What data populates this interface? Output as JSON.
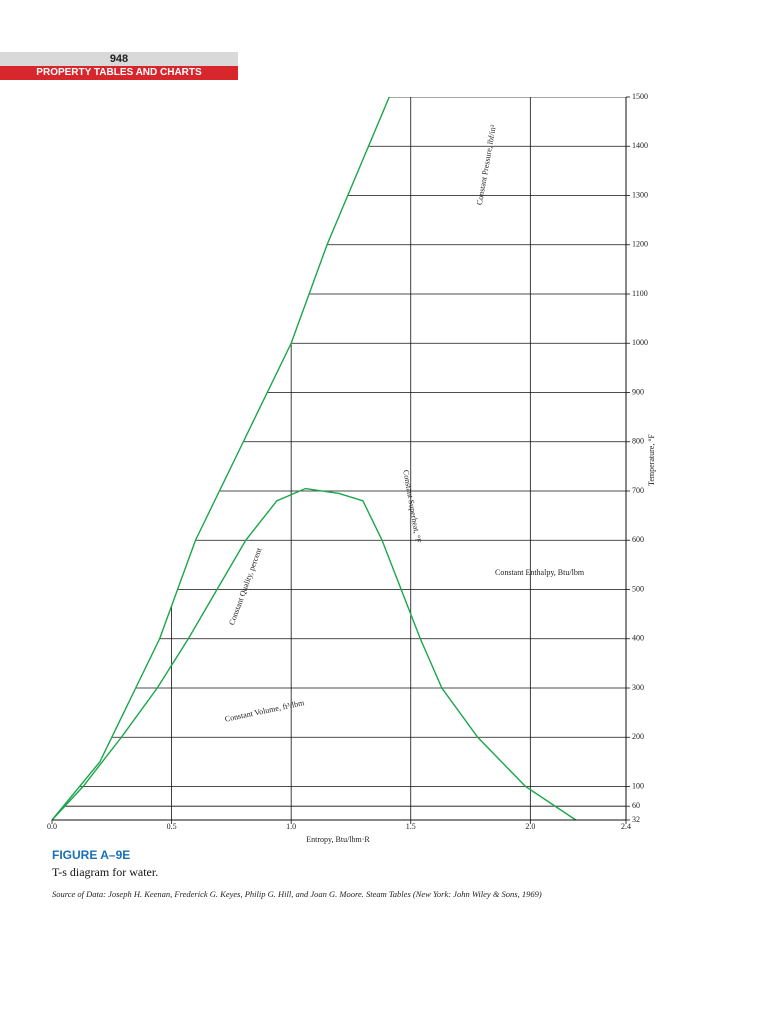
{
  "header": {
    "page_number": "948",
    "section": "PROPERTY TABLES AND CHARTS"
  },
  "chart_data": {
    "type": "line",
    "xlabel": "Entropy, Btu/lbm·R",
    "ylabel": "Temperature, °F",
    "xlim": [
      0,
      2.4
    ],
    "ylim": [
      32,
      1500
    ],
    "xticks": [
      {
        "value": 0,
        "label": "0.0"
      },
      0.5,
      {
        "value": 1,
        "label": "1.0"
      },
      1.5,
      {
        "value": 2,
        "label": "2.0"
      },
      2.4
    ],
    "yticks": [
      32,
      60,
      100,
      200,
      300,
      400,
      500,
      600,
      700,
      800,
      900,
      1000,
      1100,
      1200,
      1300,
      1400,
      1500
    ],
    "grid": true,
    "series": [
      {
        "color": "#1aa64a",
        "x": [
          0,
          0.13,
          0.29,
          0.44,
          0.57,
          0.69,
          0.81,
          0.94,
          1.06,
          1.2,
          1.3,
          1.38,
          1.46,
          1.54,
          1.63,
          1.78,
          1.98,
          2.19
        ],
        "values": [
          32,
          100,
          200,
          300,
          400,
          500,
          600,
          680,
          705,
          695,
          680,
          600,
          500,
          400,
          300,
          200,
          100,
          32
        ]
      },
      {
        "color": "#1aa64a",
        "x": [
          0,
          0.2,
          0.45,
          0.6,
          0.8,
          1.0,
          1.15,
          1.41
        ],
        "values": [
          32,
          150,
          400,
          600,
          800,
          1000,
          1200,
          1500
        ]
      }
    ],
    "annotations": [
      "Constant Pressure, lbf/in²",
      "Constant Enthalpy, Btu/lbm",
      "Constant Volume, ft³/lbm",
      "Constant Quality, percent",
      "Constant Superheat, °F"
    ]
  },
  "figure": {
    "label": "FIGURE A–9E",
    "caption": "T-s diagram for water.",
    "source": "Source of Data: Joseph H. Keenan, Frederick G. Keyes, Philip G. Hill, and Joan G. Moore. Steam Tables (New York: John Wiley & Sons, 1969)"
  }
}
